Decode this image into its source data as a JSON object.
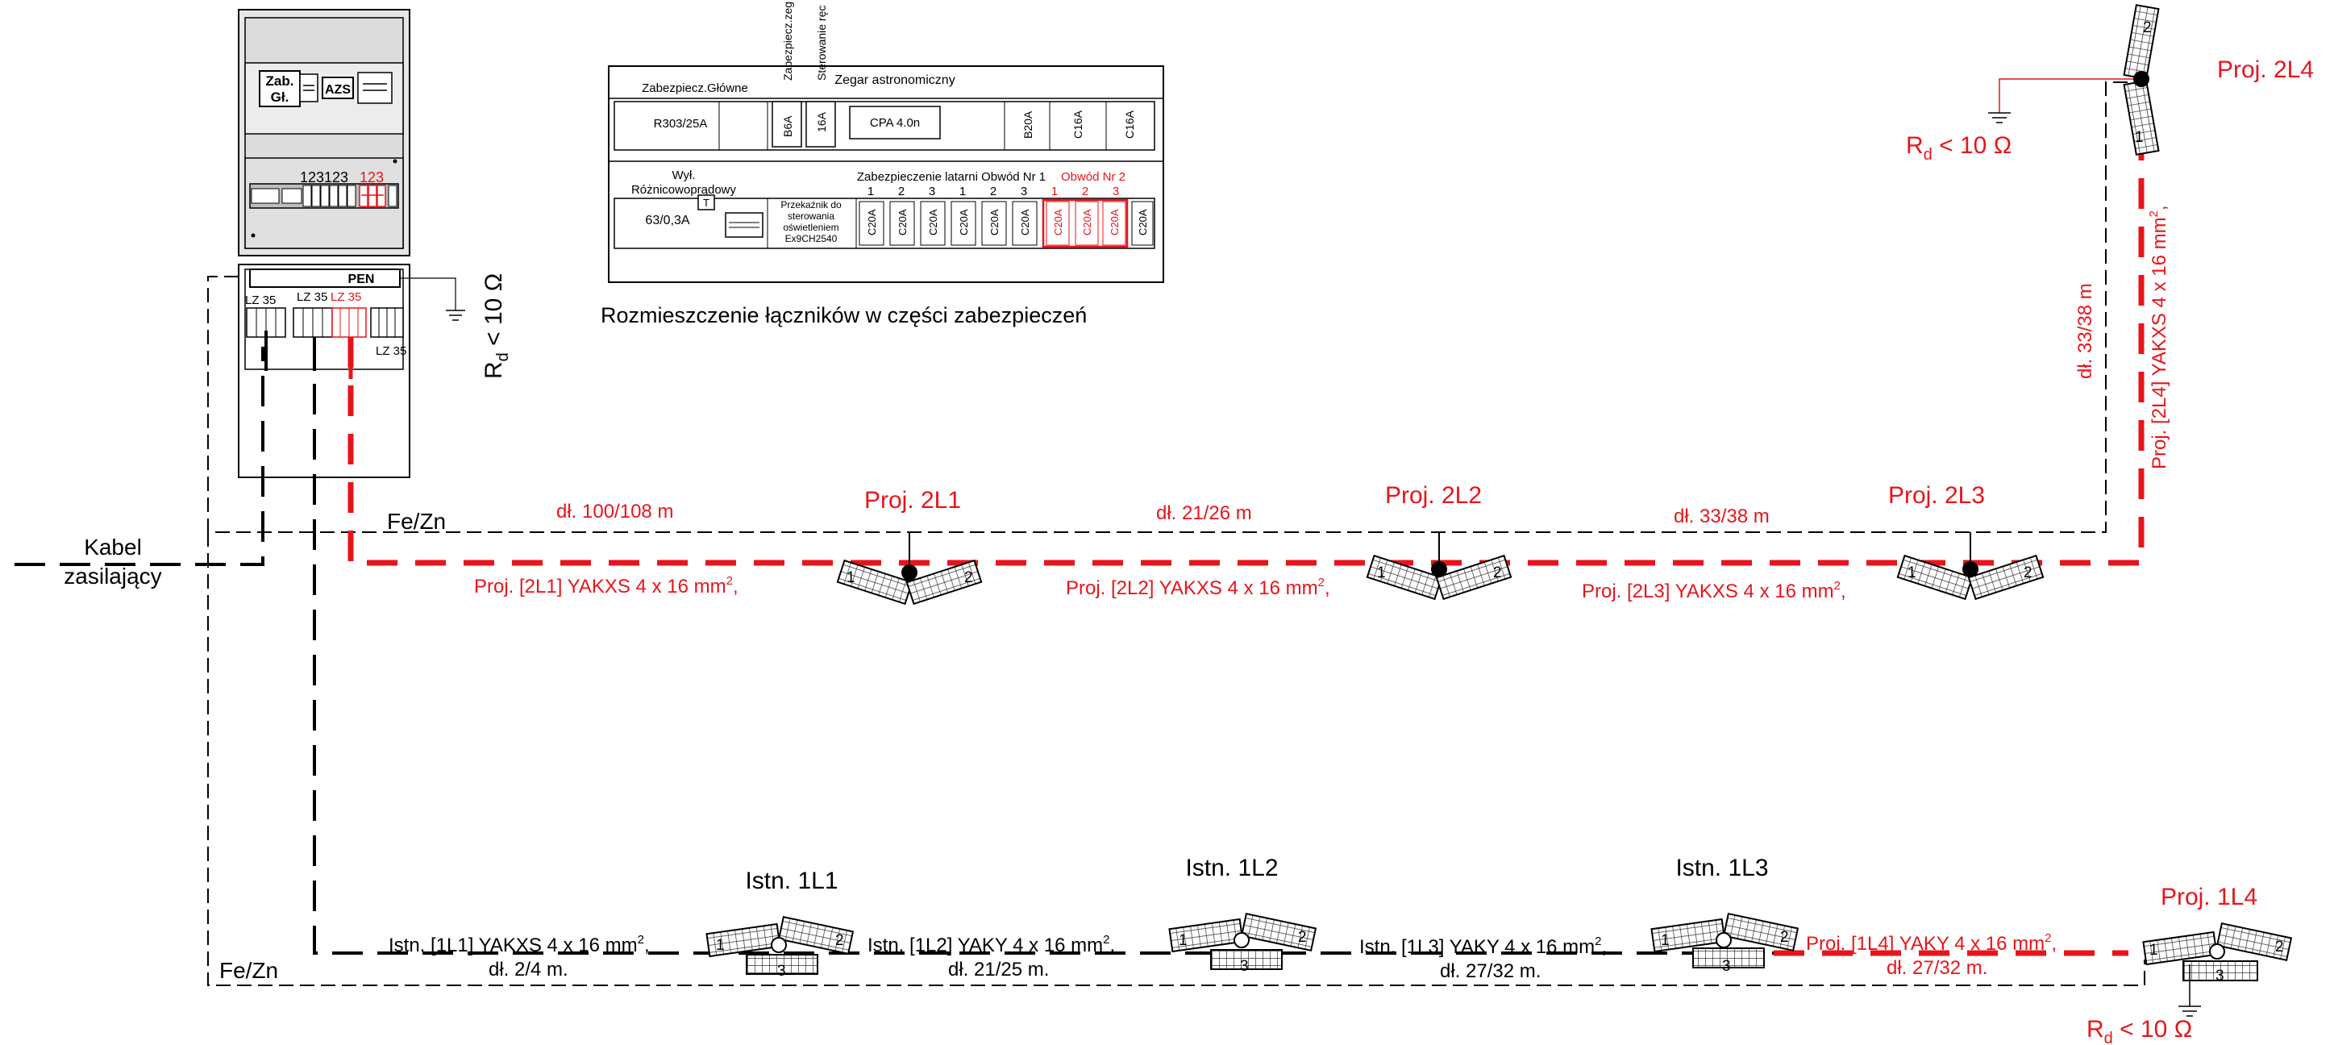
{
  "colors": {
    "black": "#000000",
    "red": "#e8141b",
    "grid": "#333333",
    "panel_fill": "#e6e6e6",
    "panel_dark": "#bdbdbd"
  },
  "cabinet": {
    "zab_label_1": "Zab.",
    "zab_label_2": "Gł.",
    "azs_label": "AZS",
    "row_numbers_black": "123123",
    "row_numbers_red": "123",
    "pen_label": "PEN",
    "lz_1": "LZ 35",
    "lz_2": "LZ 35",
    "lz_3_red": "LZ 35",
    "lz_4": "LZ 35",
    "rd_prefix": "R",
    "rd_sub": "d",
    "rd_suffix": " < 10 Ω"
  },
  "legend": {
    "caption": "Rozmieszczenie łączników w części zabezpieczeń",
    "header_main": "Zabezpiecz.Główne",
    "header_vert_1": "Zabezpiecz.zeg",
    "header_vert_2": "Sterowanie ręc",
    "header_clock": "Zegar astronomiczny",
    "main_value": "R303/25A",
    "row1_b6a": "B6A",
    "row1_16a": "16A",
    "row1_cpa": "CPA 4.0n",
    "row1_b20a": "B20A",
    "row1_c16a_1": "C16A",
    "row1_c16a_2": "C16A",
    "rcd_label_1": "Wył.",
    "rcd_label_2": "Różnicowoprądowy",
    "rcd_t": "T",
    "rcd_value": "63/0,3A",
    "relay_1": "Przekaźnik do",
    "relay_2": "sterowania",
    "relay_3": "oświetleniem",
    "relay_4": "Ex9CH2540",
    "header_circ1": "Zabezpieczenie latarni Obwód Nr 1",
    "header_circ2": "Obwód Nr 2",
    "circ_numbers": [
      "1",
      "2",
      "3",
      "1",
      "2",
      "3"
    ],
    "circ2_numbers": [
      "1",
      "2",
      "3"
    ],
    "fuse_black": [
      "C20A",
      "C20A",
      "C20A",
      "C20A",
      "C20A",
      "C20A"
    ],
    "fuse_red": [
      "C20A",
      "C20A",
      "C20A"
    ],
    "fuse_last": "C20A"
  },
  "supply": {
    "label_1": "Kabel",
    "label_2": "zasilający"
  },
  "earth_top": "Fe/Zn",
  "earth_bottom": "Fe/Zn",
  "circuit2": {
    "seg1_len": "dł. 100/108 m",
    "seg1_cable_pre": "Proj. [2L1] YAKXS 4 x 16 mm",
    "seg2_len": "dł. 21/26 m",
    "seg2_cable_pre": "Proj. [2L2] YAKXS 4 x 16 mm",
    "seg3_len": "dł. 33/38 m",
    "seg3_cable_pre": "Proj. [2L3] YAKXS 4 x 16 mm",
    "seg4_len": "dł. 33/38 m",
    "seg4_cable_pre": "Proj. [2L4] YAKXS 4 x 16 mm",
    "sup": "2",
    "comma": ",",
    "proj_1": "Proj. 2L1",
    "proj_2": "Proj. 2L2",
    "proj_3": "Proj. 2L3",
    "proj_4": "Proj. 2L4",
    "rd_prefix": "R",
    "rd_sub": "d",
    "rd_suffix": " < 10 Ω"
  },
  "circuit1": {
    "seg1_cable_pre": "Istn. [1L1] YAKXS 4 x 16 mm",
    "seg1_len": "dł. 2/4 m.",
    "seg2_cable_pre": "Istn. [1L2] YAKY 4 x 16 mm",
    "seg2_len": "dł. 21/25 m.",
    "seg3_cable_pre": "Istn. [1L3] YAKY 4 x 16 mm",
    "seg3_len": "dł. 27/32 m.",
    "seg4_cable_pre": "Proj. [1L4] YAKY 4 x 16 mm",
    "seg4_len": "dł. 27/32 m.",
    "sup": "2",
    "comma": ",",
    "istn_1": "Istn. 1L1",
    "istn_2": "Istn. 1L2",
    "istn_3": "Istn. 1L3",
    "proj_4": "Proj. 1L4",
    "rd_prefix": "R",
    "rd_sub": "d",
    "rd_suffix": " < 10 Ω"
  },
  "lamp_numbers": {
    "n1": "1",
    "n2": "2",
    "n3": "3"
  }
}
